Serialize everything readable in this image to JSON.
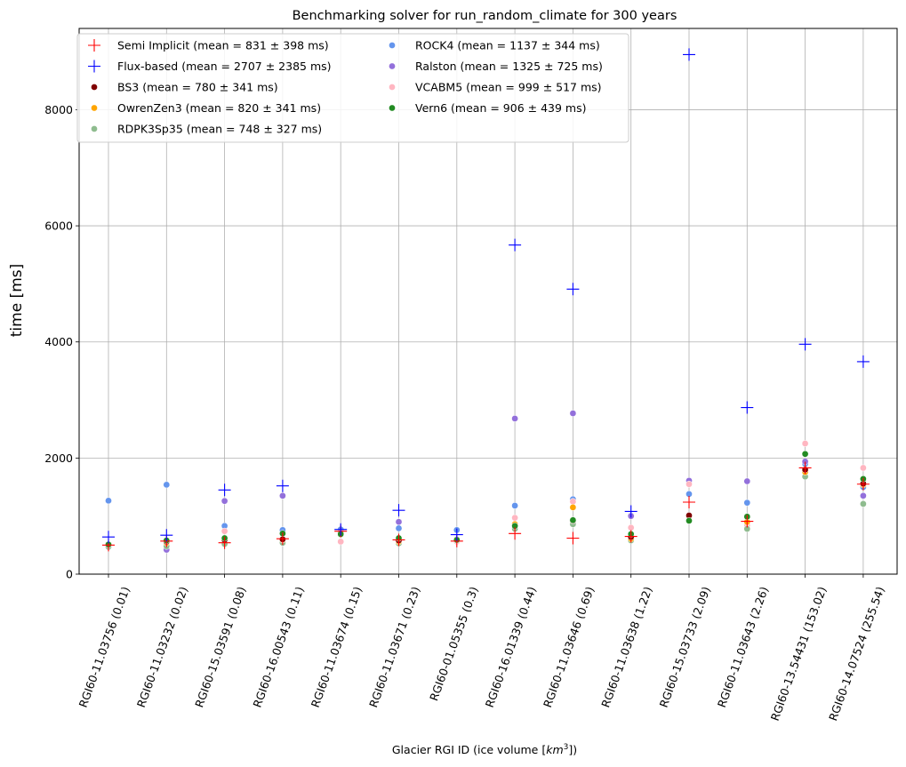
{
  "chart_data": {
    "type": "scatter",
    "title": "Benchmarking solver for run_random_climate for 300 years",
    "xlabel": "Glacier RGI ID (ice volume [",
    "xlabel_unit": "km",
    "xlabel_exp": "3",
    "xlabel_tail": "])",
    "ylabel": "time [ms]",
    "ylim": [
      0,
      9400
    ],
    "yticks": [
      0,
      2000,
      4000,
      6000,
      8000
    ],
    "grid": true,
    "legend_position": "top-left",
    "categories": [
      "RGI60-11.03756 (0.01)",
      "RGI60-11.03232 (0.02)",
      "RGI60-15.03591 (0.08)",
      "RGI60-16.00543 (0.11)",
      "RGI60-11.03674 (0.15)",
      "RGI60-11.03671 (0.23)",
      "RGI60-01.05355 (0.3)",
      "RGI60-16.01339 (0.44)",
      "RGI60-11.03646 (0.69)",
      "RGI60-11.03638 (1.22)",
      "RGI60-15.03733 (2.09)",
      "RGI60-11.03643 (2.26)",
      "RGI60-13.54431 (153.02)",
      "RGI60-14.07524 (255.54)"
    ],
    "series": [
      {
        "name": "ROCK4 (mean = 1137 ± 344 ms)",
        "marker": "dot",
        "color": "#6495ed",
        "values": [
          1265,
          1540,
          830,
          760,
          770,
          790,
          760,
          1180,
          1290,
          1010,
          1380,
          1230,
          1900,
          1500
        ]
      },
      {
        "name": "Ralston (mean = 1325 ± 725 ms)",
        "marker": "dot",
        "color": "#9370db",
        "values": [
          510,
          420,
          1260,
          1350,
          720,
          900,
          600,
          2680,
          2770,
          1000,
          1610,
          1600,
          1940,
          1350
        ]
      },
      {
        "name": "VCABM5 (mean = 999 ± 517 ms)",
        "marker": "dot",
        "color": "#ffb6c1",
        "values": [
          480,
          560,
          740,
          560,
          560,
          590,
          560,
          970,
          1250,
          800,
          1550,
          840,
          2250,
          1830
        ]
      },
      {
        "name": "RDPK3Sp35 (mean = 748 ± 327 ms)",
        "marker": "dot",
        "color": "#8fbc8f",
        "values": [
          470,
          480,
          520,
          540,
          680,
          530,
          580,
          780,
          860,
          580,
          930,
          780,
          1680,
          1210
        ]
      },
      {
        "name": "OwrenZen3 (mean = 820 ± 341 ms)",
        "marker": "dot",
        "color": "#ffa500",
        "values": [
          510,
          540,
          600,
          590,
          690,
          560,
          590,
          860,
          1150,
          610,
          1000,
          900,
          1760,
          1540
        ]
      },
      {
        "name": "BS3 (mean = 780 ± 341 ms)",
        "marker": "dot",
        "color": "#800000",
        "values": [
          500,
          560,
          590,
          600,
          700,
          580,
          590,
          830,
          920,
          640,
          1010,
          990,
          1800,
          1560
        ]
      },
      {
        "name": "Vern6 (mean = 906 ± 439 ms)",
        "marker": "dot",
        "color": "#228b22",
        "values": [
          510,
          580,
          620,
          700,
          690,
          620,
          590,
          830,
          930,
          690,
          920,
          990,
          2070,
          1640
        ]
      },
      {
        "name": "Semi Implicit (mean = 831 ± 398 ms)",
        "marker": "plus",
        "color": "#ff0000",
        "values": [
          500,
          570,
          540,
          610,
          740,
          590,
          570,
          700,
          620,
          650,
          1240,
          910,
          1830,
          1550
        ]
      },
      {
        "name": "Flux-based (mean = 2707 ± 2385 ms)",
        "marker": "plus",
        "color": "#0000ff",
        "values": [
          640,
          670,
          1450,
          1520,
          770,
          1100,
          680,
          5670,
          4910,
          1080,
          8950,
          2870,
          3960,
          3660
        ]
      }
    ],
    "legend_order": [
      "Semi Implicit (mean = 831 ± 398 ms)",
      "Flux-based (mean = 2707 ± 2385 ms)",
      "BS3 (mean = 780 ± 341 ms)",
      "OwrenZen3 (mean = 820 ± 341 ms)",
      "RDPK3Sp35 (mean = 748 ± 327 ms)",
      "ROCK4 (mean = 1137 ± 344 ms)",
      "Ralston (mean = 1325 ± 725 ms)",
      "VCABM5 (mean = 999 ± 517 ms)",
      "Vern6 (mean = 906 ± 439 ms)"
    ]
  }
}
